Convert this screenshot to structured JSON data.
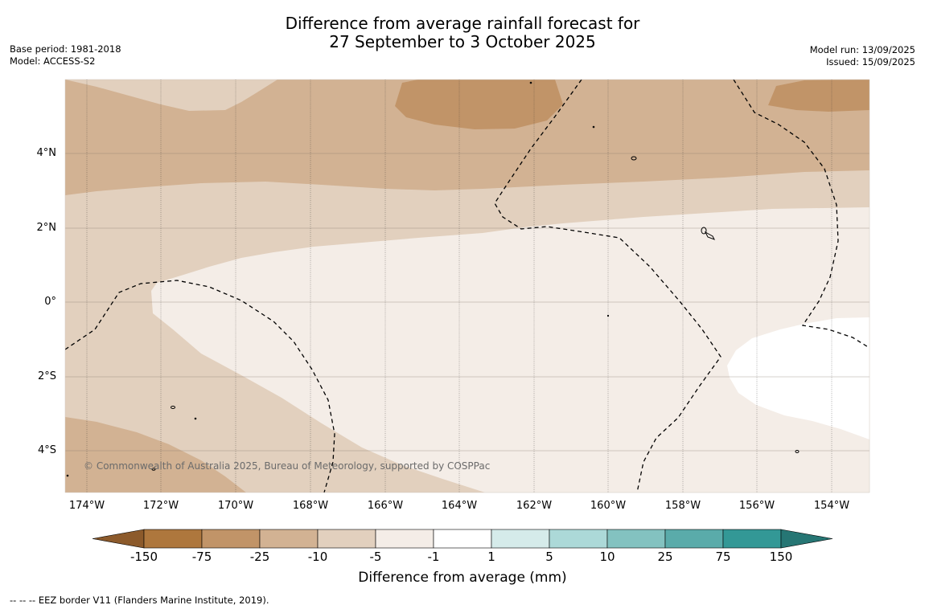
{
  "title": {
    "line1": "Difference from average rainfall forecast for",
    "line2": "27 September to 3 October 2025"
  },
  "meta_left": {
    "base_period": "Base period: 1981-2018",
    "model": "Model: ACCESS-S2"
  },
  "meta_right": {
    "model_run": "Model run: 13/09/2025",
    "issued": "Issued: 15/09/2025"
  },
  "map": {
    "lat_labels": [
      "4°N",
      "2°N",
      "0°",
      "2°S",
      "4°S"
    ],
    "lon_labels": [
      "174°W",
      "172°W",
      "170°W",
      "168°W",
      "166°W",
      "164°W",
      "162°W",
      "160°W",
      "158°W",
      "156°W",
      "154°W"
    ],
    "copyright": "© Commonwealth of Australia 2025, Bureau of Meteorology, supported by COSPPac"
  },
  "colorbar": {
    "ticks": [
      "-150",
      "-75",
      "-25",
      "-10",
      "-5",
      "-1",
      "1",
      "5",
      "10",
      "25",
      "75",
      "150"
    ],
    "colors": [
      "#8c5a2b",
      "#ae773d",
      "#c19468",
      "#d2b293",
      "#e2d0be",
      "#f4ede7",
      "#ffffff",
      "#d5ebea",
      "#acd9d8",
      "#83c2c0",
      "#5aabaa",
      "#339896",
      "#267674"
    ],
    "title": "Difference from average (mm)"
  },
  "footnote": "--  --  -- EEZ border V11 (Flanders Marine Institute, 2019)."
}
